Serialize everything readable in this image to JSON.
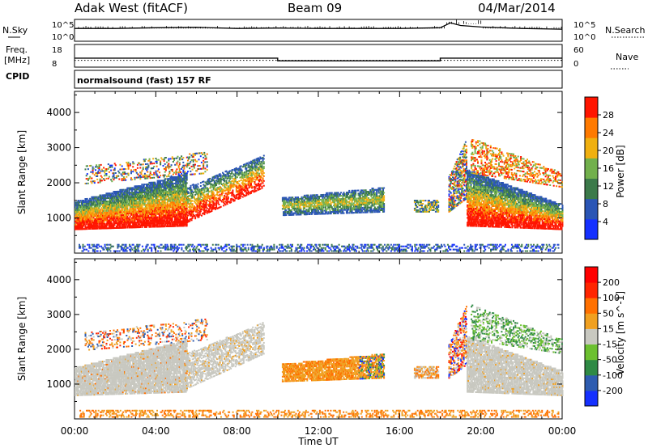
{
  "header": {
    "station": "Adak West (fitACF)",
    "beam": "Beam 09",
    "date": "04/Mar/2014"
  },
  "labels": {
    "nsky": "N.Sky",
    "nsearch": "N.Search",
    "freq": "Freq.",
    "mhz": "[MHz]",
    "nave": "Nave",
    "cpid": "CPID",
    "cpid_value": "normalsound (fast) 157 RF",
    "xaxis_title": "Time UT",
    "tick_1e5": "10^5",
    "tick_1e0": "10^0"
  },
  "chart_data": [
    {
      "type": "line",
      "panel": "noise",
      "ylabel_left": "N.Sky",
      "ylabel_right": "N.Search",
      "yticks": [
        "10^5",
        "10^0"
      ],
      "x": [
        0,
        2,
        4,
        6,
        8,
        10,
        12,
        14,
        16,
        18,
        18.5,
        19,
        20,
        22,
        24
      ],
      "series": [
        {
          "name": "N.Sky",
          "values": [
            3,
            3,
            3.2,
            3.3,
            3,
            3.1,
            3,
            3,
            3,
            3.2,
            4.5,
            3.8,
            3.4,
            3,
            2.8
          ]
        }
      ]
    },
    {
      "type": "line",
      "panel": "frequency",
      "ylabel_left": "Freq. [MHz]",
      "ylabel_right": "Nave",
      "yticks_left": [
        "18",
        "8"
      ],
      "yticks_right": [
        "60",
        "0"
      ],
      "series": [
        {
          "name": "Freq.",
          "x": [
            0,
            10,
            10,
            18,
            18,
            24
          ],
          "values": [
            11.8,
            11.8,
            10.4,
            10.4,
            11.8,
            11.8
          ]
        },
        {
          "name": "Nave",
          "x": [
            0,
            24
          ],
          "values": [
            16,
            16
          ]
        }
      ]
    },
    {
      "type": "heatmap",
      "panel": "power",
      "ylabel": "Slant Range [km]",
      "yticks": [
        "1000",
        "2000",
        "3000",
        "4000"
      ],
      "ylim": [
        0,
        4600
      ],
      "colorbar_label": "Power [dB]",
      "colorbar_ticks": [
        "4",
        "8",
        "12",
        "16",
        "20",
        "24",
        "28"
      ],
      "colorbar_colors": [
        "#1530ff",
        "#2a55b5",
        "#3c7a4a",
        "#72b04c",
        "#f0b010",
        "#ff7a00",
        "#ff1500"
      ]
    },
    {
      "type": "heatmap",
      "panel": "velocity",
      "ylabel": "Slant Range [km]",
      "yticks": [
        "1000",
        "2000",
        "3000",
        "4000"
      ],
      "ylim": [
        0,
        4600
      ],
      "colorbar_label": "Velocity [m s^-1]",
      "colorbar_ticks": [
        "200",
        "100",
        "50",
        "15",
        "-15",
        "-50",
        "-100",
        "-200"
      ],
      "colorbar_colors": [
        "#1530ff",
        "#2e5cb0",
        "#2f8a45",
        "#6cc030",
        "#c8c8c0",
        "#f0a020",
        "#ff7000",
        "#ff2500",
        "#ff0000"
      ],
      "xticks": [
        "00:00",
        "04:00",
        "08:00",
        "12:00",
        "16:00",
        "20:00",
        "00:00"
      ],
      "xlabel": "Time UT"
    }
  ]
}
